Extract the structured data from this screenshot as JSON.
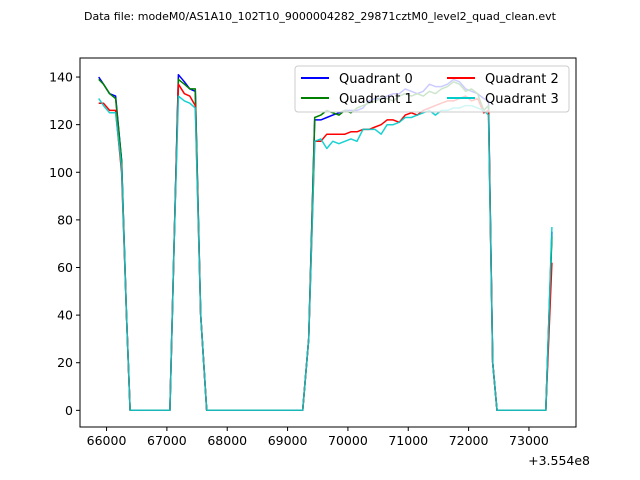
{
  "chart_data": {
    "type": "line",
    "title": "Data file: modeM0/AS1A10_102T10_9000004282_29871cztM0_level2_quad_clean.evt",
    "xlabel": "",
    "ylabel": "",
    "offset_label": "+3.554e8",
    "xlim": [
      65560,
      73780
    ],
    "ylim": [
      -7,
      148
    ],
    "x_ticks": [
      66000,
      67000,
      68000,
      69000,
      70000,
      71000,
      72000,
      73000
    ],
    "x_tick_labels": [
      "66000",
      "67000",
      "68000",
      "69000",
      "70000",
      "71000",
      "72000",
      "73000"
    ],
    "y_ticks": [
      0,
      20,
      40,
      60,
      80,
      100,
      120,
      140
    ],
    "y_tick_labels": [
      "0",
      "20",
      "40",
      "60",
      "80",
      "100",
      "120",
      "140"
    ],
    "grid": false,
    "legend_position": "upper-right",
    "legend_columns": 2,
    "series": [
      {
        "name": "Quadrant 0",
        "color": "#0000ff",
        "points": [
          [
            65870,
            140
          ],
          [
            65950,
            137
          ],
          [
            66050,
            133
          ],
          [
            66150,
            132
          ],
          [
            66250,
            105
          ],
          [
            66330,
            40
          ],
          [
            66390,
            0
          ],
          [
            66500,
            0
          ],
          [
            66700,
            0
          ],
          [
            66900,
            0
          ],
          [
            67050,
            0
          ],
          [
            67120,
            70
          ],
          [
            67190,
            141
          ],
          [
            67290,
            138
          ],
          [
            67380,
            135
          ],
          [
            67470,
            134
          ],
          [
            67560,
            40
          ],
          [
            67660,
            0
          ],
          [
            68000,
            0
          ],
          [
            68500,
            0
          ],
          [
            69000,
            0
          ],
          [
            69250,
            0
          ],
          [
            69350,
            30
          ],
          [
            69450,
            122
          ],
          [
            69550,
            122
          ],
          [
            69650,
            123
          ],
          [
            69750,
            124
          ],
          [
            69850,
            125
          ],
          [
            69950,
            126
          ],
          [
            70050,
            126
          ],
          [
            70150,
            126
          ],
          [
            70250,
            127
          ],
          [
            70350,
            130
          ],
          [
            70450,
            131
          ],
          [
            70550,
            131
          ],
          [
            70650,
            132
          ],
          [
            70750,
            133
          ],
          [
            70850,
            133
          ],
          [
            70950,
            135
          ],
          [
            71050,
            134
          ],
          [
            71150,
            133
          ],
          [
            71250,
            134
          ],
          [
            71350,
            137
          ],
          [
            71450,
            136
          ],
          [
            71550,
            136
          ],
          [
            71650,
            137
          ],
          [
            71750,
            139
          ],
          [
            71850,
            138
          ],
          [
            71950,
            135
          ],
          [
            72050,
            134
          ],
          [
            72150,
            133
          ],
          [
            72250,
            131
          ],
          [
            72330,
            130
          ],
          [
            72400,
            20
          ],
          [
            72470,
            0
          ],
          [
            72600,
            0
          ],
          [
            72900,
            0
          ],
          [
            73200,
            0
          ],
          [
            73280,
            0
          ],
          [
            73380,
            75
          ]
        ]
      },
      {
        "name": "Quadrant 1",
        "color": "#008000",
        "points": [
          [
            65870,
            139
          ],
          [
            65950,
            137
          ],
          [
            66050,
            133
          ],
          [
            66150,
            131
          ],
          [
            66250,
            105
          ],
          [
            66330,
            40
          ],
          [
            66390,
            0
          ],
          [
            66500,
            0
          ],
          [
            66700,
            0
          ],
          [
            66900,
            0
          ],
          [
            67050,
            0
          ],
          [
            67120,
            70
          ],
          [
            67190,
            139
          ],
          [
            67290,
            137
          ],
          [
            67380,
            135
          ],
          [
            67470,
            135
          ],
          [
            67560,
            40
          ],
          [
            67660,
            0
          ],
          [
            68000,
            0
          ],
          [
            68500,
            0
          ],
          [
            69000,
            0
          ],
          [
            69250,
            0
          ],
          [
            69350,
            30
          ],
          [
            69450,
            123
          ],
          [
            69550,
            124
          ],
          [
            69650,
            126
          ],
          [
            69750,
            125
          ],
          [
            69850,
            124
          ],
          [
            69950,
            126
          ],
          [
            70050,
            125
          ],
          [
            70150,
            127
          ],
          [
            70250,
            128
          ],
          [
            70350,
            129
          ],
          [
            70450,
            130
          ],
          [
            70550,
            131
          ],
          [
            70650,
            131
          ],
          [
            70750,
            130
          ],
          [
            70850,
            132
          ],
          [
            70950,
            133
          ],
          [
            71050,
            132
          ],
          [
            71150,
            133
          ],
          [
            71250,
            132
          ],
          [
            71350,
            134
          ],
          [
            71450,
            133
          ],
          [
            71550,
            135
          ],
          [
            71650,
            136
          ],
          [
            71750,
            138
          ],
          [
            71850,
            137
          ],
          [
            71950,
            134
          ],
          [
            72050,
            135
          ],
          [
            72150,
            133
          ],
          [
            72250,
            126
          ],
          [
            72330,
            128
          ],
          [
            72400,
            20
          ],
          [
            72470,
            0
          ],
          [
            72600,
            0
          ],
          [
            72900,
            0
          ],
          [
            73200,
            0
          ],
          [
            73280,
            0
          ],
          [
            73380,
            73
          ]
        ]
      },
      {
        "name": "Quadrant 2",
        "color": "#ff0000",
        "points": [
          [
            65870,
            129
          ],
          [
            65950,
            129
          ],
          [
            66050,
            126
          ],
          [
            66150,
            126
          ],
          [
            66250,
            100
          ],
          [
            66330,
            40
          ],
          [
            66390,
            0
          ],
          [
            66500,
            0
          ],
          [
            66700,
            0
          ],
          [
            66900,
            0
          ],
          [
            67050,
            0
          ],
          [
            67120,
            70
          ],
          [
            67190,
            137
          ],
          [
            67290,
            133
          ],
          [
            67380,
            132
          ],
          [
            67470,
            128
          ],
          [
            67560,
            40
          ],
          [
            67660,
            0
          ],
          [
            68000,
            0
          ],
          [
            68500,
            0
          ],
          [
            69000,
            0
          ],
          [
            69250,
            0
          ],
          [
            69350,
            30
          ],
          [
            69450,
            113
          ],
          [
            69550,
            113
          ],
          [
            69650,
            116
          ],
          [
            69750,
            116
          ],
          [
            69850,
            116
          ],
          [
            69950,
            116
          ],
          [
            70050,
            117
          ],
          [
            70150,
            117
          ],
          [
            70250,
            118
          ],
          [
            70350,
            118
          ],
          [
            70450,
            119
          ],
          [
            70550,
            120
          ],
          [
            70650,
            122
          ],
          [
            70750,
            122
          ],
          [
            70850,
            121
          ],
          [
            70950,
            124
          ],
          [
            71050,
            125
          ],
          [
            71150,
            124
          ],
          [
            71250,
            126
          ],
          [
            71350,
            127
          ],
          [
            71450,
            128
          ],
          [
            71550,
            129
          ],
          [
            71650,
            130
          ],
          [
            71750,
            130
          ],
          [
            71850,
            131
          ],
          [
            71950,
            132
          ],
          [
            72050,
            130
          ],
          [
            72150,
            131
          ],
          [
            72250,
            125
          ],
          [
            72330,
            126
          ],
          [
            72400,
            20
          ],
          [
            72470,
            0
          ],
          [
            72600,
            0
          ],
          [
            72900,
            0
          ],
          [
            73200,
            0
          ],
          [
            73280,
            0
          ],
          [
            73380,
            62
          ]
        ]
      },
      {
        "name": "Quadrant 3",
        "color": "#00cccc",
        "points": [
          [
            65870,
            131
          ],
          [
            65950,
            128
          ],
          [
            66050,
            125
          ],
          [
            66150,
            125
          ],
          [
            66250,
            102
          ],
          [
            66330,
            40
          ],
          [
            66390,
            0
          ],
          [
            66500,
            0
          ],
          [
            66700,
            0
          ],
          [
            66900,
            0
          ],
          [
            67050,
            0
          ],
          [
            67120,
            70
          ],
          [
            67190,
            132
          ],
          [
            67290,
            130
          ],
          [
            67380,
            129
          ],
          [
            67470,
            127
          ],
          [
            67560,
            40
          ],
          [
            67660,
            0
          ],
          [
            68000,
            0
          ],
          [
            68500,
            0
          ],
          [
            69000,
            0
          ],
          [
            69250,
            0
          ],
          [
            69350,
            30
          ],
          [
            69450,
            113
          ],
          [
            69550,
            114
          ],
          [
            69650,
            110
          ],
          [
            69750,
            113
          ],
          [
            69850,
            112
          ],
          [
            69950,
            113
          ],
          [
            70050,
            114
          ],
          [
            70150,
            113
          ],
          [
            70250,
            118
          ],
          [
            70350,
            118
          ],
          [
            70450,
            118
          ],
          [
            70550,
            116
          ],
          [
            70650,
            120
          ],
          [
            70750,
            120
          ],
          [
            70850,
            121
          ],
          [
            70950,
            123
          ],
          [
            71050,
            123
          ],
          [
            71150,
            124
          ],
          [
            71250,
            125
          ],
          [
            71350,
            126
          ],
          [
            71450,
            124
          ],
          [
            71550,
            126
          ],
          [
            71650,
            126
          ],
          [
            71750,
            127
          ],
          [
            71850,
            127
          ],
          [
            71950,
            128
          ],
          [
            72050,
            128
          ],
          [
            72150,
            127
          ],
          [
            72250,
            126
          ],
          [
            72330,
            124
          ],
          [
            72400,
            20
          ],
          [
            72470,
            0
          ],
          [
            72600,
            0
          ],
          [
            72900,
            0
          ],
          [
            73200,
            0
          ],
          [
            73280,
            0
          ],
          [
            73380,
            77
          ]
        ]
      }
    ]
  }
}
